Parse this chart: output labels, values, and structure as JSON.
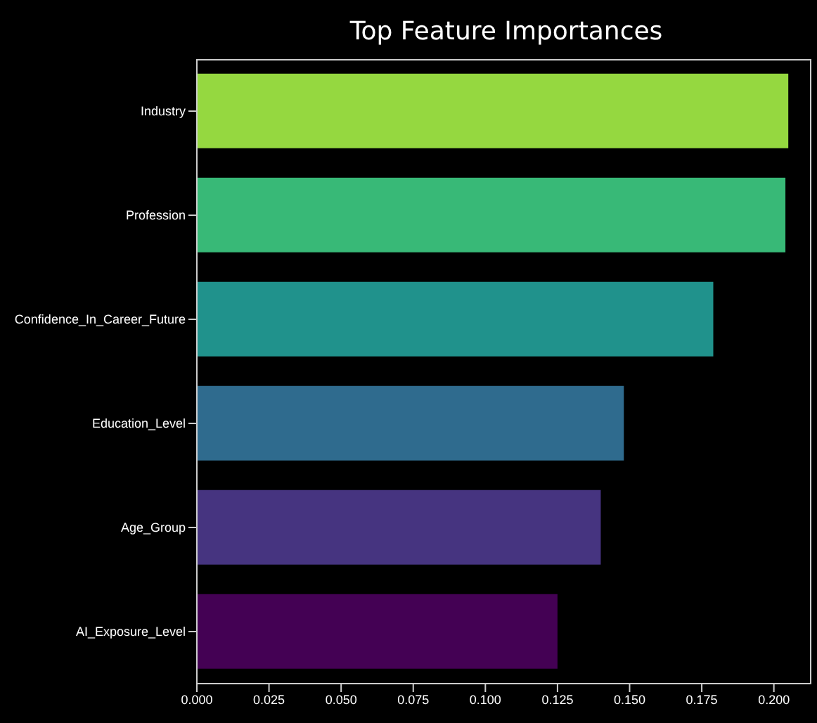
{
  "chart_data": {
    "type": "bar",
    "orientation": "horizontal",
    "title": "Top Feature Importances",
    "categories": [
      "Industry",
      "Profession",
      "Confidence_In_Career_Future",
      "Education_Level",
      "Age_Group",
      "AI_Exposure_Level"
    ],
    "values": [
      0.205,
      0.204,
      0.179,
      0.148,
      0.14,
      0.125
    ],
    "colors": [
      "#95d840",
      "#38b977",
      "#20928c",
      "#2f6b8e",
      "#463480",
      "#440154"
    ],
    "xlim": [
      0,
      0.213
    ],
    "xticks": [
      {
        "value": 0,
        "label": "0.000"
      },
      {
        "value": 0.025,
        "label": "0.025"
      },
      {
        "value": 0.05,
        "label": "0.050"
      },
      {
        "value": 0.075,
        "label": "0.075"
      },
      {
        "value": 0.1,
        "label": "0.100"
      },
      {
        "value": 0.125,
        "label": "0.125"
      },
      {
        "value": 0.15,
        "label": "0.150"
      },
      {
        "value": 0.175,
        "label": "0.175"
      },
      {
        "value": 0.2,
        "label": "0.200"
      }
    ],
    "grid": false,
    "legend": false
  }
}
